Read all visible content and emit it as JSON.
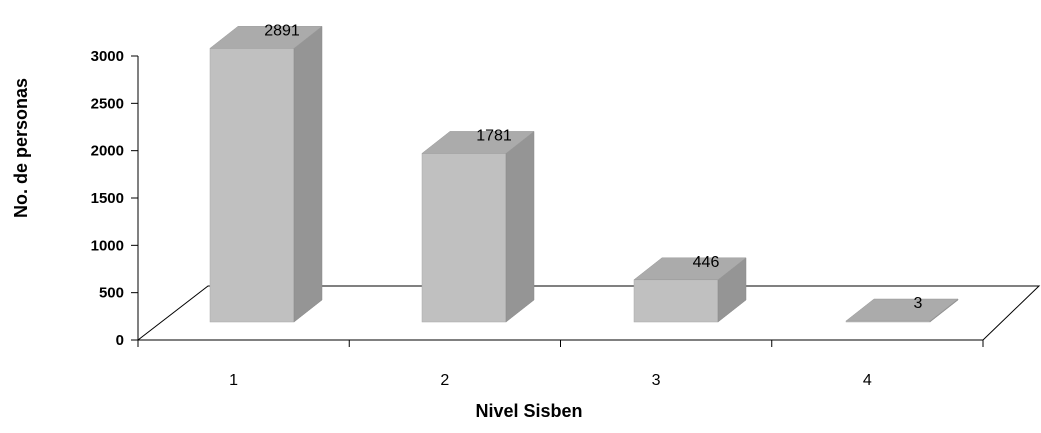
{
  "chart_data": {
    "type": "bar",
    "style": "3d-column",
    "title": "",
    "xlabel": "Nivel Sisben",
    "ylabel": "No. de personas",
    "categories": [
      "1",
      "2",
      "3",
      "4"
    ],
    "values": [
      2891,
      1781,
      446,
      3
    ],
    "data_labels": [
      "2891",
      "1781",
      "446",
      "3"
    ],
    "ylim": [
      0,
      3000
    ],
    "yticks": [
      "0",
      "500",
      "1000",
      "1500",
      "2000",
      "2500",
      "3000"
    ],
    "grid": false,
    "legend": "none",
    "colors": {
      "bar_front": "#c0c0c0",
      "bar_top": "#ababab",
      "bar_side": "#959595",
      "floor_line": "#000000"
    }
  }
}
